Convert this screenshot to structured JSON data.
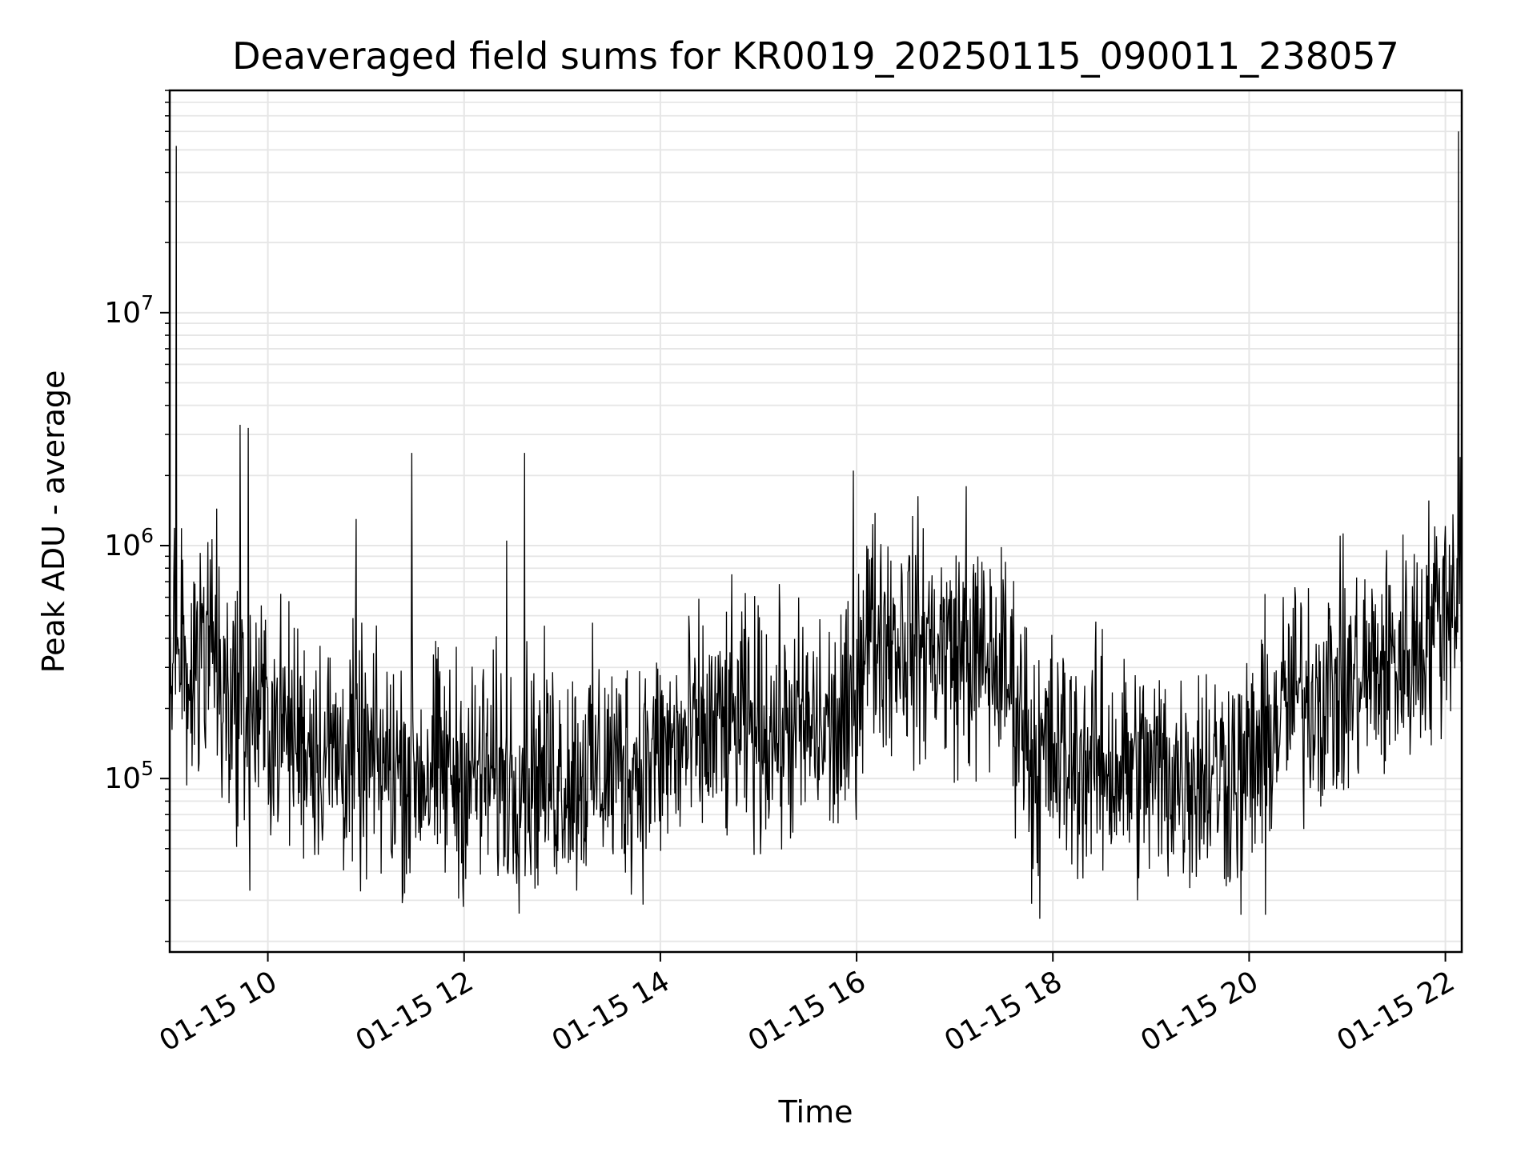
{
  "chart_data": {
    "type": "line",
    "title": "Deaveraged field sums for KR0019_20250115_090011_238057",
    "xlabel": "Time",
    "ylabel": "Peak ADU - average",
    "x_axis": {
      "kind": "time",
      "range": [
        "2025-01-15T09:00:00",
        "2025-01-15T22:10:00"
      ],
      "ticks": [
        {
          "value": "2025-01-15T10:00:00",
          "label": "01-15 10"
        },
        {
          "value": "2025-01-15T12:00:00",
          "label": "01-15 12"
        },
        {
          "value": "2025-01-15T14:00:00",
          "label": "01-15 14"
        },
        {
          "value": "2025-01-15T16:00:00",
          "label": "01-15 16"
        },
        {
          "value": "2025-01-15T18:00:00",
          "label": "01-15 18"
        },
        {
          "value": "2025-01-15T20:00:00",
          "label": "01-15 20"
        },
        {
          "value": "2025-01-15T22:00:00",
          "label": "01-15 22"
        }
      ],
      "tick_label_rotation_deg": 30
    },
    "y_axis": {
      "scale": "log",
      "range": [
        18000,
        90000000
      ],
      "ticks": [
        {
          "value": 100000,
          "base": "10",
          "exp": "5"
        },
        {
          "value": 1000000,
          "base": "10",
          "exp": "6"
        },
        {
          "value": 10000000,
          "base": "10",
          "exp": "7"
        }
      ]
    },
    "grid": "major and minor",
    "legend": "none",
    "colors": {
      "line": "#000000",
      "grid": "#e6e6e6",
      "axes": "#000000",
      "background": "#ffffff"
    },
    "trend": [
      [
        "2025-01-15T09:00:00",
        420000
      ],
      [
        "2025-01-15T09:15:00",
        300000
      ],
      [
        "2025-01-15T09:25:00",
        520000
      ],
      [
        "2025-01-15T09:35:00",
        230000
      ],
      [
        "2025-01-15T10:00:00",
        180000
      ],
      [
        "2025-01-15T10:30:00",
        140000
      ],
      [
        "2025-01-15T11:00:00",
        115000
      ],
      [
        "2025-01-15T12:00:00",
        105000
      ],
      [
        "2025-01-15T13:00:00",
        105000
      ],
      [
        "2025-01-15T13:45:00",
        115000
      ],
      [
        "2025-01-15T14:15:00",
        140000
      ],
      [
        "2025-01-15T14:45:00",
        170000
      ],
      [
        "2025-01-15T15:30:00",
        160000
      ],
      [
        "2025-01-15T15:55:00",
        160000
      ],
      [
        "2025-01-15T16:05:00",
        450000
      ],
      [
        "2025-01-15T16:45:00",
        380000
      ],
      [
        "2025-01-15T17:30:00",
        300000
      ],
      [
        "2025-01-15T17:50:00",
        130000
      ],
      [
        "2025-01-15T19:00:00",
        105000
      ],
      [
        "2025-01-15T20:00:00",
        110000
      ],
      [
        "2025-01-15T20:25:00",
        220000
      ],
      [
        "2025-01-15T21:00:00",
        250000
      ],
      [
        "2025-01-15T21:40:00",
        350000
      ],
      [
        "2025-01-15T22:05:00",
        650000
      ],
      [
        "2025-01-15T22:10:00",
        700000
      ]
    ],
    "spikes": [
      [
        "2025-01-15T09:04:00",
        52000000
      ],
      [
        "2025-01-15T09:43:00",
        3300000
      ],
      [
        "2025-01-15T09:48:00",
        3200000
      ],
      [
        "2025-01-15T09:49:00",
        33000
      ],
      [
        "2025-01-15T10:54:00",
        1300000
      ],
      [
        "2025-01-15T11:28:00",
        2500000
      ],
      [
        "2025-01-15T12:26:00",
        1050000
      ],
      [
        "2025-01-15T12:37:00",
        2500000
      ],
      [
        "2025-01-15T15:58:00",
        2100000
      ],
      [
        "2025-01-15T17:07:00",
        1800000
      ],
      [
        "2025-01-15T17:47:00",
        29000
      ],
      [
        "2025-01-15T17:52:00",
        25000
      ],
      [
        "2025-01-15T19:55:00",
        26000
      ],
      [
        "2025-01-15T20:10:00",
        26000
      ],
      [
        "2025-01-15T22:08:00",
        60000000
      ],
      [
        "2025-01-15T22:09:00",
        2400000
      ]
    ],
    "noise_spread_decades": 0.5,
    "sample_count": 2200
  }
}
